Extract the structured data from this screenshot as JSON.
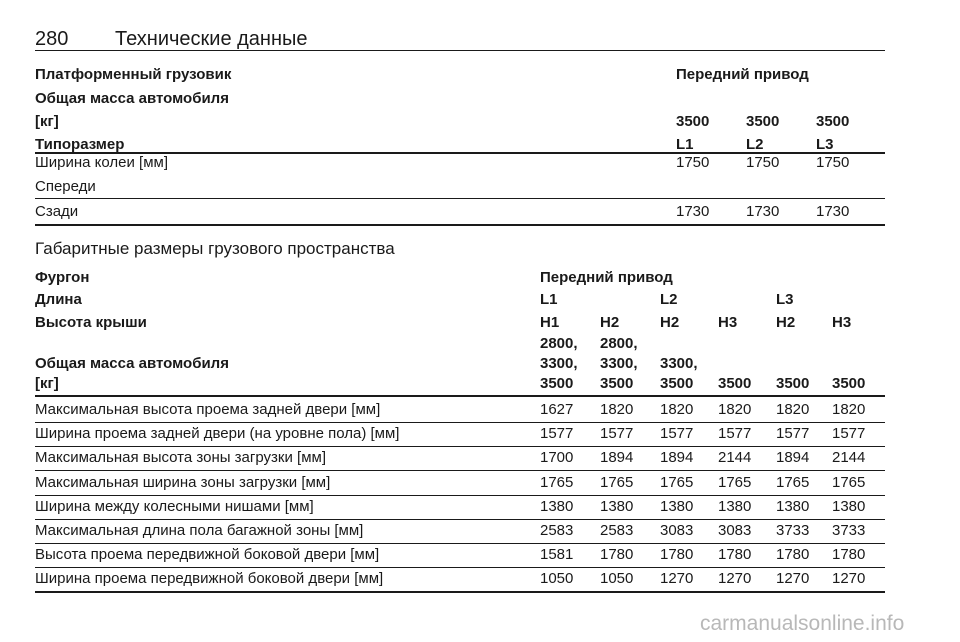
{
  "header": {
    "page_number": 280,
    "title": "Технические данные"
  },
  "table1": {
    "head": [
      {
        "label": "Платформенный грузовик",
        "cells": [
          "Передний привод"
        ]
      },
      {
        "label": "Общая масса автомобиля"
      },
      {
        "label": "[кг]",
        "cells": [
          3500,
          3500,
          3500
        ]
      },
      {
        "label": "Типоразмер",
        "cells": [
          "L1",
          "L2",
          "L3"
        ]
      }
    ],
    "body": [
      {
        "label": "Ширина колеи [мм]",
        "cells": [
          1750,
          1750,
          1750
        ]
      },
      {
        "label": "Спереди"
      },
      {
        "label": "Сзади",
        "cells": [
          1730,
          1730,
          1730
        ]
      }
    ]
  },
  "section_title": "Габаритные размеры грузового пространства",
  "table2": {
    "head": [
      {
        "label": "Фургон",
        "cells": [
          "Передний привод"
        ]
      },
      {
        "label": "Длина",
        "cells": [
          "L1",
          "L2",
          "L3"
        ]
      },
      {
        "label": "Высота крыши",
        "cells": [
          "H1",
          "H2",
          "H2",
          "H3",
          "H2",
          "H3"
        ]
      },
      {
        "cells": [
          "2800,",
          "2800,"
        ]
      },
      {
        "label": "Общая масса автомобиля",
        "cells": [
          "3300,",
          "3300,",
          "3300,"
        ]
      },
      {
        "label": "[кг]",
        "cells": [
          3500,
          3500,
          3500,
          3500,
          3500,
          3500
        ]
      }
    ],
    "body": [
      {
        "label": "Максимальная высота проема задней двери [мм]",
        "cells": [
          1627,
          1820,
          1820,
          1820,
          1820,
          1820
        ]
      },
      {
        "label": "Ширина проема задней двери (на уровне пола) [мм]",
        "cells": [
          1577,
          1577,
          1577,
          1577,
          1577,
          1577
        ]
      },
      {
        "label": "Максимальная высота зоны загрузки [мм]",
        "cells": [
          1700,
          1894,
          1894,
          2144,
          1894,
          2144
        ]
      },
      {
        "label": "Максимальная ширина зоны загрузки [мм]",
        "cells": [
          1765,
          1765,
          1765,
          1765,
          1765,
          1765
        ]
      },
      {
        "label": "Ширина между колесными нишами [мм]",
        "cells": [
          1380,
          1380,
          1380,
          1380,
          1380,
          1380
        ]
      },
      {
        "label": "Максимальная длина пола багажной зоны [мм]",
        "cells": [
          2583,
          2583,
          3083,
          3083,
          3733,
          3733
        ]
      },
      {
        "label": "Высота проема передвижной боковой двери [мм]",
        "cells": [
          1581,
          1780,
          1780,
          1780,
          1780,
          1780
        ]
      },
      {
        "label": "Ширина проема передвижной боковой двери [мм]",
        "cells": [
          1050,
          1050,
          1270,
          1270,
          1270,
          1270
        ]
      }
    ]
  },
  "watermark": "carmanualsonline.info"
}
